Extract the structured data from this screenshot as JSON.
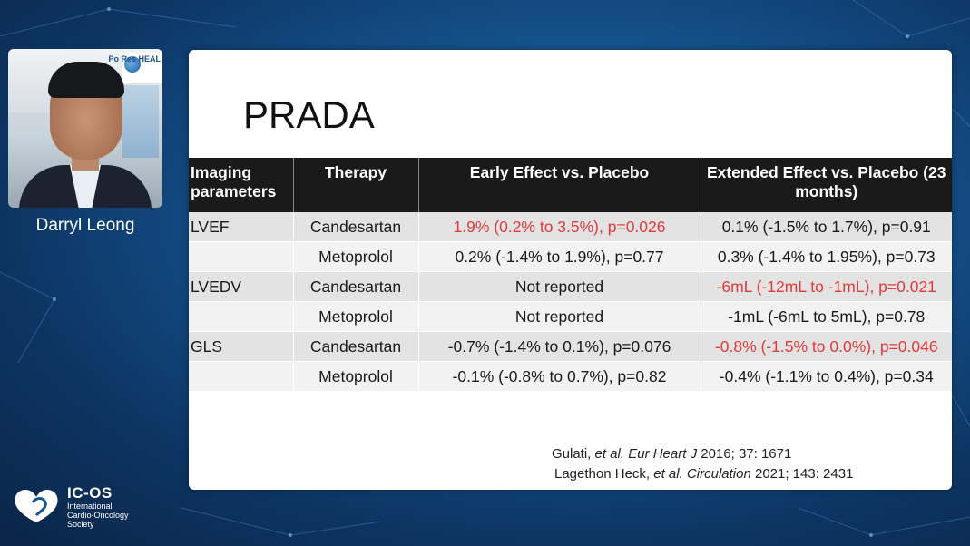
{
  "speaker": {
    "name": "Darryl Leong",
    "logo_text": "Po Res HEAL"
  },
  "slide": {
    "title": "PRADA",
    "table": {
      "headers": [
        "Imaging parameters",
        "Therapy",
        "Early Effect vs. Placebo",
        "Extended Effect vs. Placebo (23 months)"
      ],
      "rows": [
        {
          "param": "LVEF",
          "therapy": "Candesartan",
          "early": "1.9% (0.2% to 3.5%), p=0.026",
          "extended": "0.1% (-1.5% to 1.7%), p=0.91"
        },
        {
          "param": "",
          "therapy": "Metoprolol",
          "early": "0.2% (-1.4% to 1.9%), p=0.77",
          "extended": "0.3% (-1.4% to 1.95%), p=0.73"
        },
        {
          "param": "LVEDV",
          "therapy": "Candesartan",
          "early": "Not reported",
          "extended": "-6mL (-12mL to -1mL), p=0.021"
        },
        {
          "param": "",
          "therapy": "Metoprolol",
          "early": "Not reported",
          "extended": "-1mL (-6mL to 5mL), p=0.78"
        },
        {
          "param": "GLS",
          "therapy": "Candesartan",
          "early": "-0.7% (-1.4% to 0.1%), p=0.076",
          "extended": "-0.8% (-1.5% to 0.0%), p=0.046"
        },
        {
          "param": "",
          "therapy": "Metoprolol",
          "early": "-0.1% (-0.8% to 0.7%), p=0.82",
          "extended": "-0.4% (-1.1% to 0.4%), p=0.34"
        }
      ]
    },
    "references": {
      "ref1_authors": "Gulati, ",
      "ref1_etal": "et al. Eur Heart J",
      "ref1_rest": " 2016; 37: 1671",
      "ref2_authors": "Lagethon Heck, ",
      "ref2_etal": "et al. Circulation",
      "ref2_rest": " 2021; 143: 2431"
    }
  },
  "organization": {
    "name": "IC-OS",
    "sub_line1": "International",
    "sub_line2": "Cardio-Oncology",
    "sub_line3": "Society"
  },
  "colors": {
    "significant_text": "#e03b3b",
    "header_bg": "#1a1a1a",
    "background": "#15548f"
  }
}
